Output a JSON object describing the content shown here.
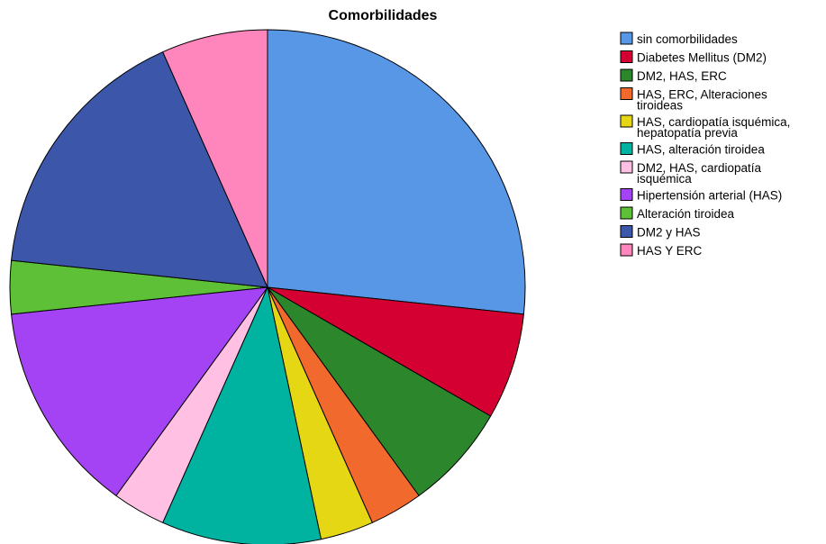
{
  "chart_data": {
    "type": "pie",
    "title": "Comorbilidades",
    "legend_position": "right",
    "slices": [
      {
        "label": "sin comorbilidades",
        "label_lines": [
          "sin comorbilidades"
        ],
        "value": 27.6,
        "color": "#5797E5"
      },
      {
        "label": "Diabetes Mellitus (DM2)",
        "label_lines": [
          "Diabetes Mellitus (DM2)"
        ],
        "value": 6.9,
        "color": "#D50032"
      },
      {
        "label": "DM2, HAS, ERC",
        "label_lines": [
          "DM2, HAS, ERC"
        ],
        "value": 6.9,
        "color": "#2B862C"
      },
      {
        "label": "HAS, ERC, Alteraciones tiroideas",
        "label_lines": [
          "HAS, ERC, Alteraciones",
          "tiroideas"
        ],
        "value": 3.45,
        "color": "#F2692D"
      },
      {
        "label": "HAS, cardiopatía isquémica, hepatopatía previa",
        "label_lines": [
          "HAS, cardiopatía isquémica,",
          "hepatopatía previa"
        ],
        "value": 3.45,
        "color": "#E6D714"
      },
      {
        "label": "HAS, alteración tiroidea",
        "label_lines": [
          "HAS, alteración tiroidea"
        ],
        "value": 10.35,
        "color": "#00B2A0"
      },
      {
        "label": "DM2, HAS, cardiopatía isquémica",
        "label_lines": [
          "DM2, HAS, cardiopatía",
          "isquémica"
        ],
        "value": 3.45,
        "color": "#FFC0E3"
      },
      {
        "label": "Hipertensión arterial (HAS)",
        "label_lines": [
          "Hipertensión arterial (HAS)"
        ],
        "value": 13.8,
        "color": "#A443F4"
      },
      {
        "label": "Alteración tiroidea",
        "label_lines": [
          "Alteración tiroidea"
        ],
        "value": 3.45,
        "color": "#5DC036"
      },
      {
        "label": "DM2 y HAS",
        "label_lines": [
          "DM2 y HAS"
        ],
        "value": 17.25,
        "color": "#3C57AA"
      },
      {
        "label": "HAS Y ERC",
        "label_lines": [
          "HAS Y ERC"
        ],
        "value": 6.9,
        "color": "#FF86BC"
      }
    ]
  }
}
